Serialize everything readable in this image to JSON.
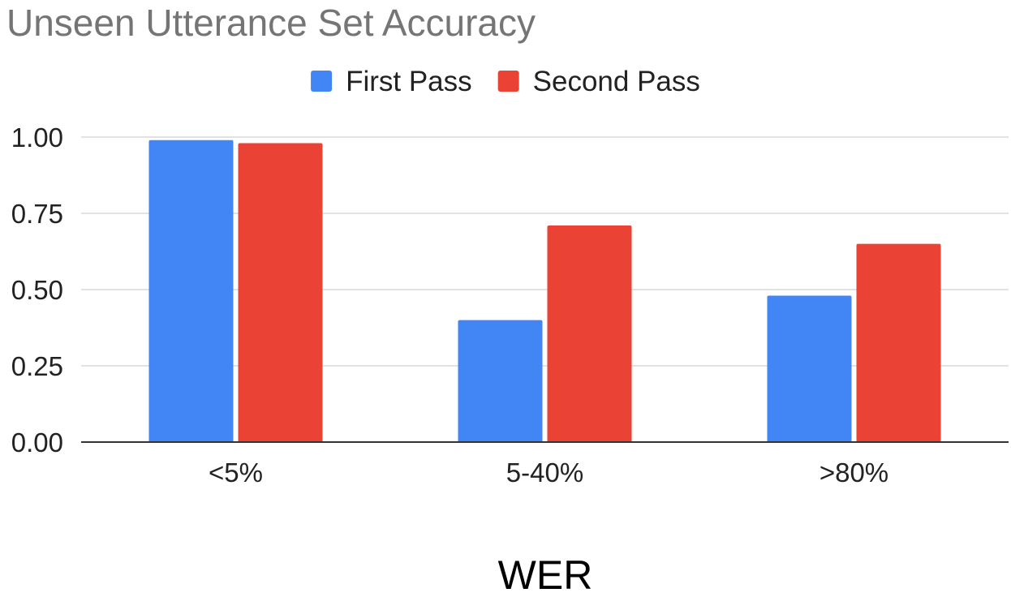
{
  "chart_data": {
    "type": "bar",
    "title": "Unseen Utterance Set Accuracy",
    "xlabel": "WER",
    "ylabel": "",
    "categories": [
      "<5%",
      "5-40%",
      ">80%"
    ],
    "series": [
      {
        "name": "First Pass",
        "color": "#4285f4",
        "values": [
          0.99,
          0.4,
          0.48
        ]
      },
      {
        "name": "Second Pass",
        "color": "#ea4335",
        "values": [
          0.98,
          0.71,
          0.65
        ]
      }
    ],
    "ylim": [
      0,
      1.0
    ],
    "yticks": [
      "0.00",
      "0.25",
      "0.50",
      "0.75",
      "1.00"
    ],
    "ytick_values": [
      0,
      0.25,
      0.5,
      0.75,
      1.0
    ],
    "grid": true,
    "legend_position": "top-center"
  }
}
